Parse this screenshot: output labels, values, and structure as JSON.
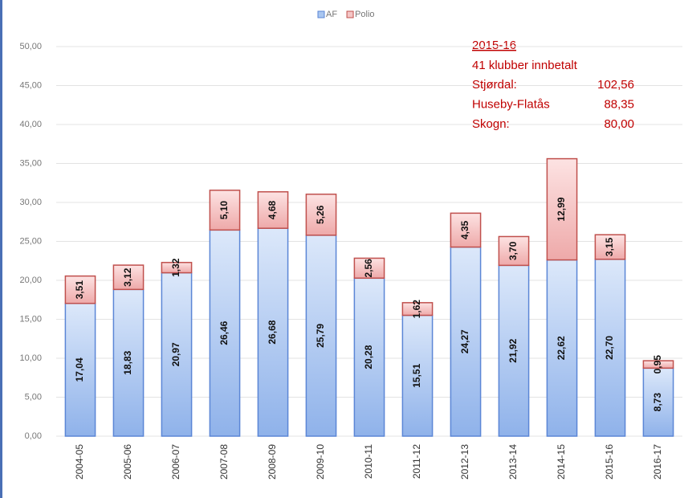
{
  "chart_data": {
    "type": "stacked_bar",
    "categories": [
      "2004-05",
      "2005-06",
      "2006-07",
      "2007-08",
      "2008-09",
      "2009-10",
      "2010-11",
      "2011-12",
      "2012-13",
      "2013-14",
      "2014-15",
      "2015-16",
      "2016-17"
    ],
    "series": [
      {
        "name": "AF",
        "color": "#a9c6f0",
        "values": [
          17.04,
          18.83,
          20.97,
          26.46,
          26.68,
          25.79,
          20.28,
          15.51,
          24.27,
          21.92,
          22.62,
          22.7,
          8.73
        ],
        "value_labels": [
          "17,04",
          "18,83",
          "20,97",
          "26,46",
          "26,68",
          "25,79",
          "20,28",
          "15,51",
          "24,27",
          "21,92",
          "22,62",
          "22,70",
          "8,73"
        ]
      },
      {
        "name": "Polio",
        "color": "#f5c6c6",
        "values": [
          3.51,
          3.12,
          1.32,
          5.1,
          4.68,
          5.26,
          2.56,
          1.62,
          4.35,
          3.7,
          12.99,
          3.15,
          0.95
        ],
        "value_labels": [
          "3,51",
          "3,12",
          "1,32",
          "5,10",
          "4,68",
          "5,26",
          "2,56",
          "1,62",
          "4,35",
          "3,70",
          "12,99",
          "3,15",
          "0,95"
        ]
      }
    ],
    "ylim": [
      0,
      50
    ],
    "yticks": [
      {
        "value": 0,
        "label": "0,00"
      },
      {
        "value": 5,
        "label": "5,00"
      },
      {
        "value": 10,
        "label": "10,00"
      },
      {
        "value": 15,
        "label": "15,00"
      },
      {
        "value": 20,
        "label": "20,00"
      },
      {
        "value": 25,
        "label": "25,00"
      },
      {
        "value": 30,
        "label": "30,00"
      },
      {
        "value": 35,
        "label": "35,00"
      },
      {
        "value": 40,
        "label": "40,00"
      },
      {
        "value": 45,
        "label": "45,00"
      },
      {
        "value": 50,
        "label": "50,00"
      }
    ],
    "grid": true,
    "legend": "top",
    "annotation": {
      "title": "2015-16",
      "subtitle": "41 klubber innbetalt",
      "rows": [
        {
          "label": "Stjørdal:",
          "value": "102,56"
        },
        {
          "label": "Huseby-Flatås",
          "value": "88,35"
        },
        {
          "label": "Skogn:",
          "value": "80,00"
        }
      ]
    }
  }
}
